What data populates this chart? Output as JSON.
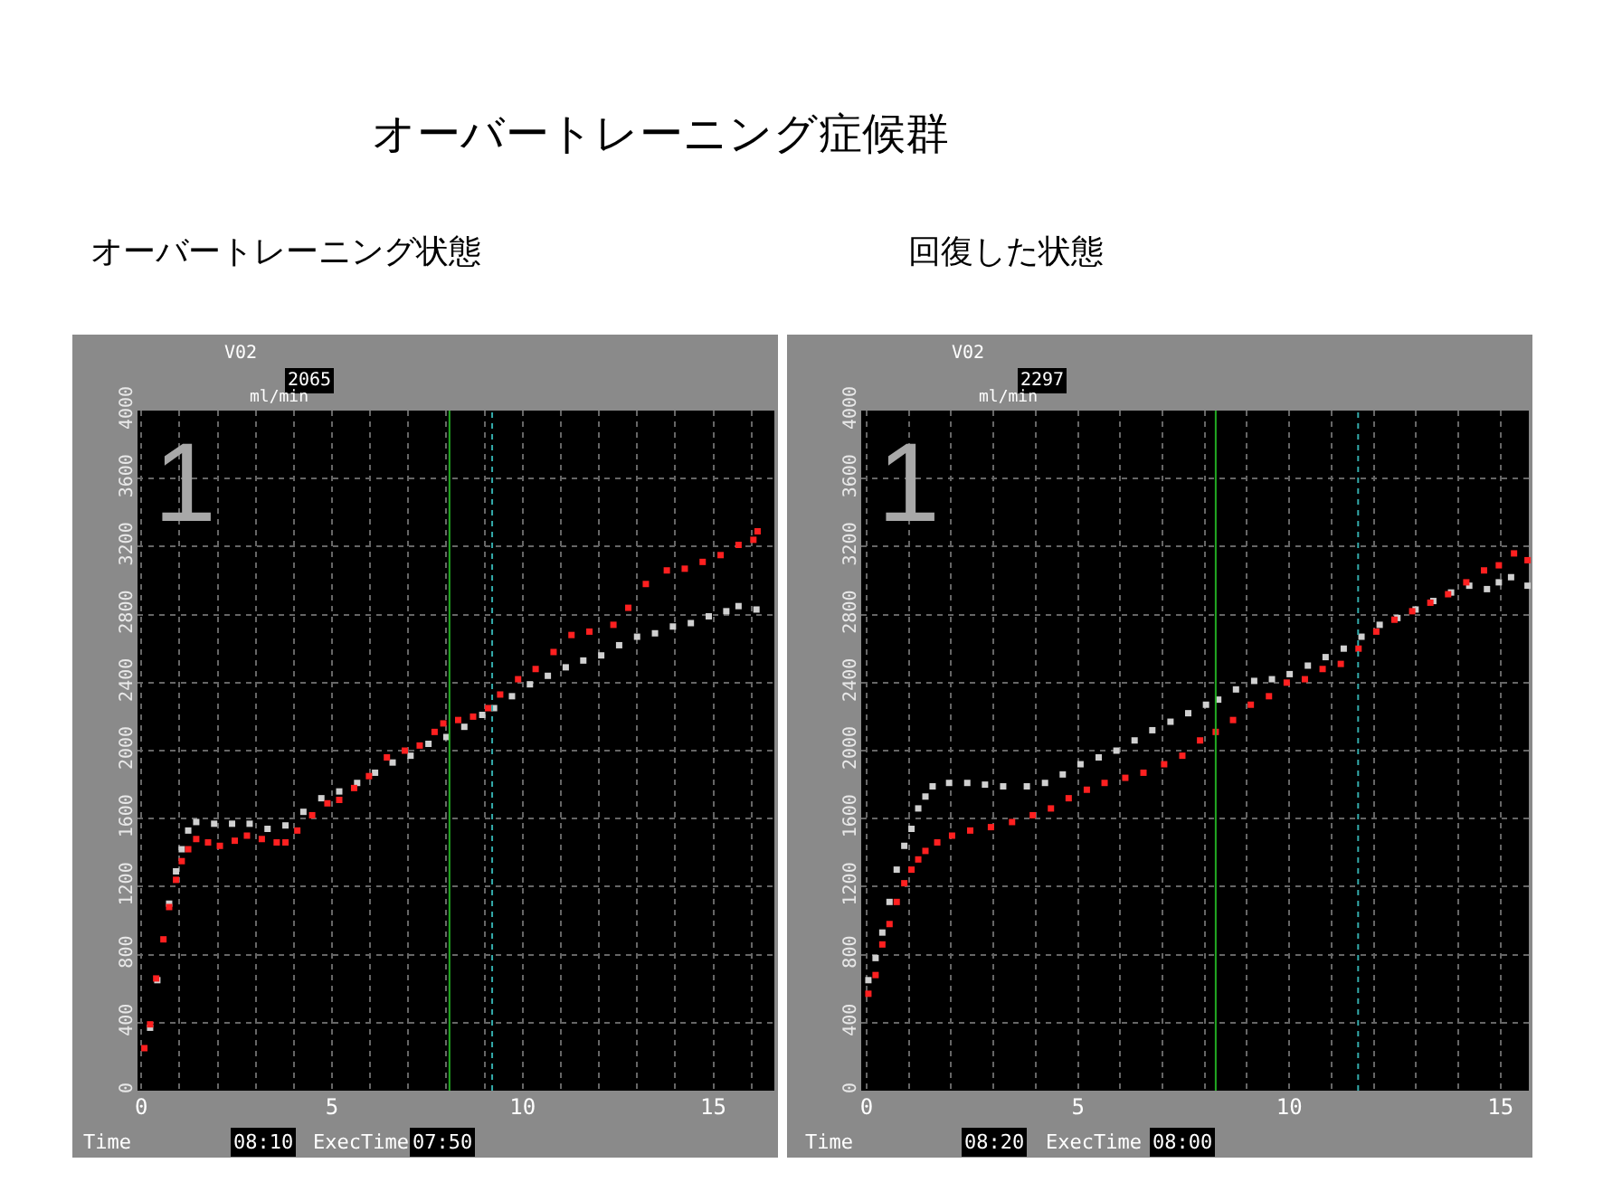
{
  "chart_data": [
    {
      "type": "other",
      "title": "オーバートレーニング症候群"
    },
    {
      "type": "scatter",
      "title": "オーバートレーニング状態",
      "marker": "square",
      "grid": true,
      "xlim": [
        -0.1,
        16.6
      ],
      "xticks": [
        0,
        {
          "value": 1,
          "label": null
        },
        {
          "value": 2,
          "label": null
        },
        {
          "value": 3,
          "label": null
        },
        {
          "value": 4,
          "label": null
        },
        5,
        {
          "value": 6,
          "label": null
        },
        {
          "value": 7,
          "label": null
        },
        {
          "value": 8,
          "label": null
        },
        {
          "value": 9,
          "label": null
        },
        10,
        {
          "value": 11,
          "label": null
        },
        {
          "value": 12,
          "label": null
        },
        {
          "value": 13,
          "label": null
        },
        {
          "value": 14,
          "label": null
        },
        15,
        {
          "value": 16,
          "label": null
        }
      ],
      "ylim": [
        0,
        4000
      ],
      "yticks": [
        0,
        400,
        800,
        1200,
        1600,
        2000,
        2400,
        2800,
        3200,
        3600,
        4000
      ],
      "ref_lines": [
        {
          "axis": "x",
          "value": 8.08,
          "color": "#22aa22",
          "line_style": "solid"
        },
        {
          "axis": "x",
          "value": 9.2,
          "color": "#33aaaa",
          "line_style": "dotted"
        }
      ],
      "annotations": [
        "V02",
        "2065",
        "ml/min",
        "1",
        "Time",
        "08:10",
        "ExecTime",
        "07:50"
      ],
      "series": [
        {
          "color": "#ff2020",
          "x": [
            0.08,
            0.23,
            0.39,
            0.58,
            0.73,
            0.91,
            1.06,
            1.23,
            1.44,
            1.75,
            2.06,
            2.45,
            2.77,
            3.16,
            3.55,
            3.78,
            4.09,
            4.48,
            4.88,
            5.19,
            5.58,
            5.97,
            6.44,
            6.91,
            7.3,
            7.69,
            7.92,
            8.31,
            8.7,
            9.09,
            9.41,
            9.88,
            10.34,
            10.81,
            11.28,
            11.75,
            12.38,
            12.77,
            13.23,
            13.78,
            14.25,
            14.72,
            15.19,
            15.66,
            16.05,
            16.16
          ],
          "values": [
            250,
            390,
            660,
            890,
            1080,
            1240,
            1350,
            1420,
            1480,
            1460,
            1440,
            1470,
            1500,
            1480,
            1460,
            1460,
            1530,
            1620,
            1690,
            1710,
            1780,
            1850,
            1960,
            2000,
            2030,
            2110,
            2160,
            2180,
            2200,
            2250,
            2330,
            2420,
            2480,
            2580,
            2680,
            2700,
            2740,
            2840,
            2980,
            3060,
            3070,
            3110,
            3150,
            3210,
            3240,
            3290
          ]
        },
        {
          "color": "#d0d0d0",
          "x": [
            0.23,
            0.42,
            0.73,
            0.91,
            1.06,
            1.23,
            1.44,
            1.91,
            2.38,
            2.84,
            3.31,
            3.78,
            4.25,
            4.72,
            5.19,
            5.66,
            6.13,
            6.59,
            7.06,
            7.53,
            8.0,
            8.47,
            8.94,
            9.25,
            9.72,
            10.19,
            10.66,
            11.13,
            11.59,
            12.06,
            12.53,
            13.0,
            13.47,
            13.94,
            14.41,
            14.88,
            15.34,
            15.66,
            16.13
          ],
          "values": [
            370,
            650,
            1100,
            1290,
            1420,
            1530,
            1580,
            1570,
            1570,
            1570,
            1540,
            1560,
            1640,
            1720,
            1760,
            1810,
            1870,
            1930,
            1970,
            2040,
            2080,
            2140,
            2210,
            2250,
            2320,
            2390,
            2440,
            2490,
            2530,
            2560,
            2620,
            2670,
            2690,
            2730,
            2750,
            2790,
            2820,
            2850,
            2830
          ]
        }
      ]
    },
    {
      "type": "scatter",
      "title": "回復した状態",
      "marker": "square",
      "grid": true,
      "xlim": [
        -0.13,
        15.67
      ],
      "xticks": [
        0,
        {
          "value": 1,
          "label": null
        },
        {
          "value": 2,
          "label": null
        },
        {
          "value": 3,
          "label": null
        },
        {
          "value": 4,
          "label": null
        },
        5,
        {
          "value": 6,
          "label": null
        },
        {
          "value": 7,
          "label": null
        },
        {
          "value": 8,
          "label": null
        },
        {
          "value": 9,
          "label": null
        },
        10,
        {
          "value": 11,
          "label": null
        },
        {
          "value": 12,
          "label": null
        },
        {
          "value": 13,
          "label": null
        },
        {
          "value": 14,
          "label": null
        },
        15
      ],
      "ylim": [
        0,
        4000
      ],
      "yticks": [
        0,
        400,
        800,
        1200,
        1600,
        2000,
        2400,
        2800,
        3200,
        3600,
        4000
      ],
      "ref_lines": [
        {
          "axis": "x",
          "value": 8.26,
          "color": "#22aa22",
          "line_style": "solid"
        },
        {
          "axis": "x",
          "value": 11.63,
          "color": "#33aaaa",
          "line_style": "dotted"
        }
      ],
      "annotations": [
        "V02",
        "2297",
        "ml/min",
        "1",
        "Time",
        "08:20",
        "ExecTime",
        "08:00"
      ],
      "series": [
        {
          "color": "#ff2020",
          "x": [
            0.04,
            0.21,
            0.37,
            0.54,
            0.71,
            0.89,
            1.06,
            1.22,
            1.39,
            1.67,
            2.02,
            2.45,
            2.94,
            3.44,
            3.93,
            4.36,
            4.78,
            5.21,
            5.63,
            6.12,
            6.55,
            7.04,
            7.47,
            7.89,
            8.26,
            8.67,
            9.09,
            9.52,
            9.94,
            10.37,
            10.79,
            11.22,
            11.64,
            12.06,
            12.49,
            12.91,
            13.34,
            13.76,
            14.19,
            14.61,
            14.96,
            15.32,
            15.64
          ],
          "values": [
            570,
            680,
            860,
            980,
            1110,
            1220,
            1300,
            1360,
            1410,
            1460,
            1500,
            1530,
            1550,
            1580,
            1620,
            1660,
            1720,
            1770,
            1810,
            1840,
            1870,
            1920,
            1970,
            2060,
            2110,
            2180,
            2270,
            2320,
            2400,
            2420,
            2480,
            2510,
            2600,
            2700,
            2770,
            2820,
            2870,
            2920,
            2990,
            3060,
            3090,
            3160,
            3120
          ]
        },
        {
          "color": "#d0d0d0",
          "x": [
            0.04,
            0.21,
            0.37,
            0.54,
            0.71,
            0.89,
            1.06,
            1.22,
            1.39,
            1.56,
            1.95,
            2.38,
            2.8,
            3.23,
            3.79,
            4.22,
            4.64,
            5.06,
            5.49,
            5.91,
            6.34,
            6.76,
            7.19,
            7.61,
            8.03,
            8.32,
            8.74,
            9.17,
            9.59,
            10.01,
            10.44,
            10.86,
            11.29,
            11.71,
            12.14,
            12.56,
            12.99,
            13.41,
            13.83,
            14.26,
            14.68,
            14.96,
            15.25,
            15.64
          ],
          "values": [
            650,
            780,
            930,
            1110,
            1300,
            1440,
            1540,
            1660,
            1730,
            1790,
            1810,
            1810,
            1800,
            1790,
            1790,
            1810,
            1860,
            1920,
            1960,
            2000,
            2060,
            2120,
            2170,
            2220,
            2270,
            2300,
            2360,
            2410,
            2420,
            2450,
            2500,
            2550,
            2600,
            2670,
            2740,
            2780,
            2830,
            2880,
            2930,
            2970,
            2950,
            2990,
            3020,
            2970
          ]
        }
      ]
    }
  ]
}
